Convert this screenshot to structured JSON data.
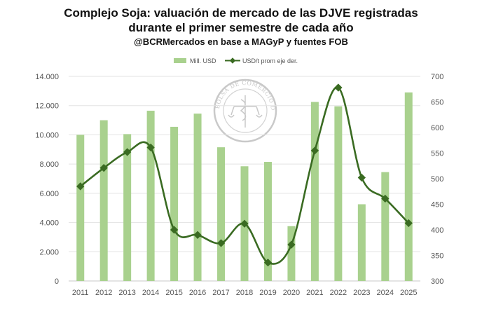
{
  "chart_data": {
    "type": "bar+line",
    "title": "Complejo Soja: valuación de mercado de las DJVE registradas",
    "title_line2": "durante el primer semestre de cada año",
    "subtitle": "@BCRMercados en base a MAGyP y fuentes FOB",
    "categories": [
      "2011",
      "2012",
      "2013",
      "2014",
      "2015",
      "2016",
      "2017",
      "2018",
      "2019",
      "2020",
      "2021",
      "2022",
      "2023",
      "2024",
      "2025"
    ],
    "series": [
      {
        "name": "Mill. USD",
        "type": "bar",
        "axis": "left",
        "color": "#a9d18e",
        "values": [
          10000,
          11000,
          10050,
          11650,
          10550,
          11450,
          9150,
          7850,
          8150,
          3750,
          12250,
          11950,
          5250,
          7450,
          12900
        ]
      },
      {
        "name": "USD/t prom eje der.",
        "type": "line",
        "axis": "right",
        "color": "#3a6b22",
        "values": [
          485,
          521,
          552,
          561,
          400,
          390,
          374,
          412,
          336,
          371,
          555,
          678,
          502,
          461,
          413
        ]
      }
    ],
    "y_left": {
      "min": 0,
      "max": 14000,
      "step": 2000,
      "ticks": [
        "0",
        "2.000",
        "4.000",
        "6.000",
        "8.000",
        "10.000",
        "12.000",
        "14.000"
      ]
    },
    "y_right": {
      "min": 300,
      "max": 700,
      "step": 50,
      "ticks": [
        "300",
        "350",
        "400",
        "450",
        "500",
        "550",
        "600",
        "650",
        "700"
      ]
    },
    "grid": true,
    "legend_position": "top",
    "seal_text": "BOLSA DE COMERCIO DE ROSARIO"
  }
}
